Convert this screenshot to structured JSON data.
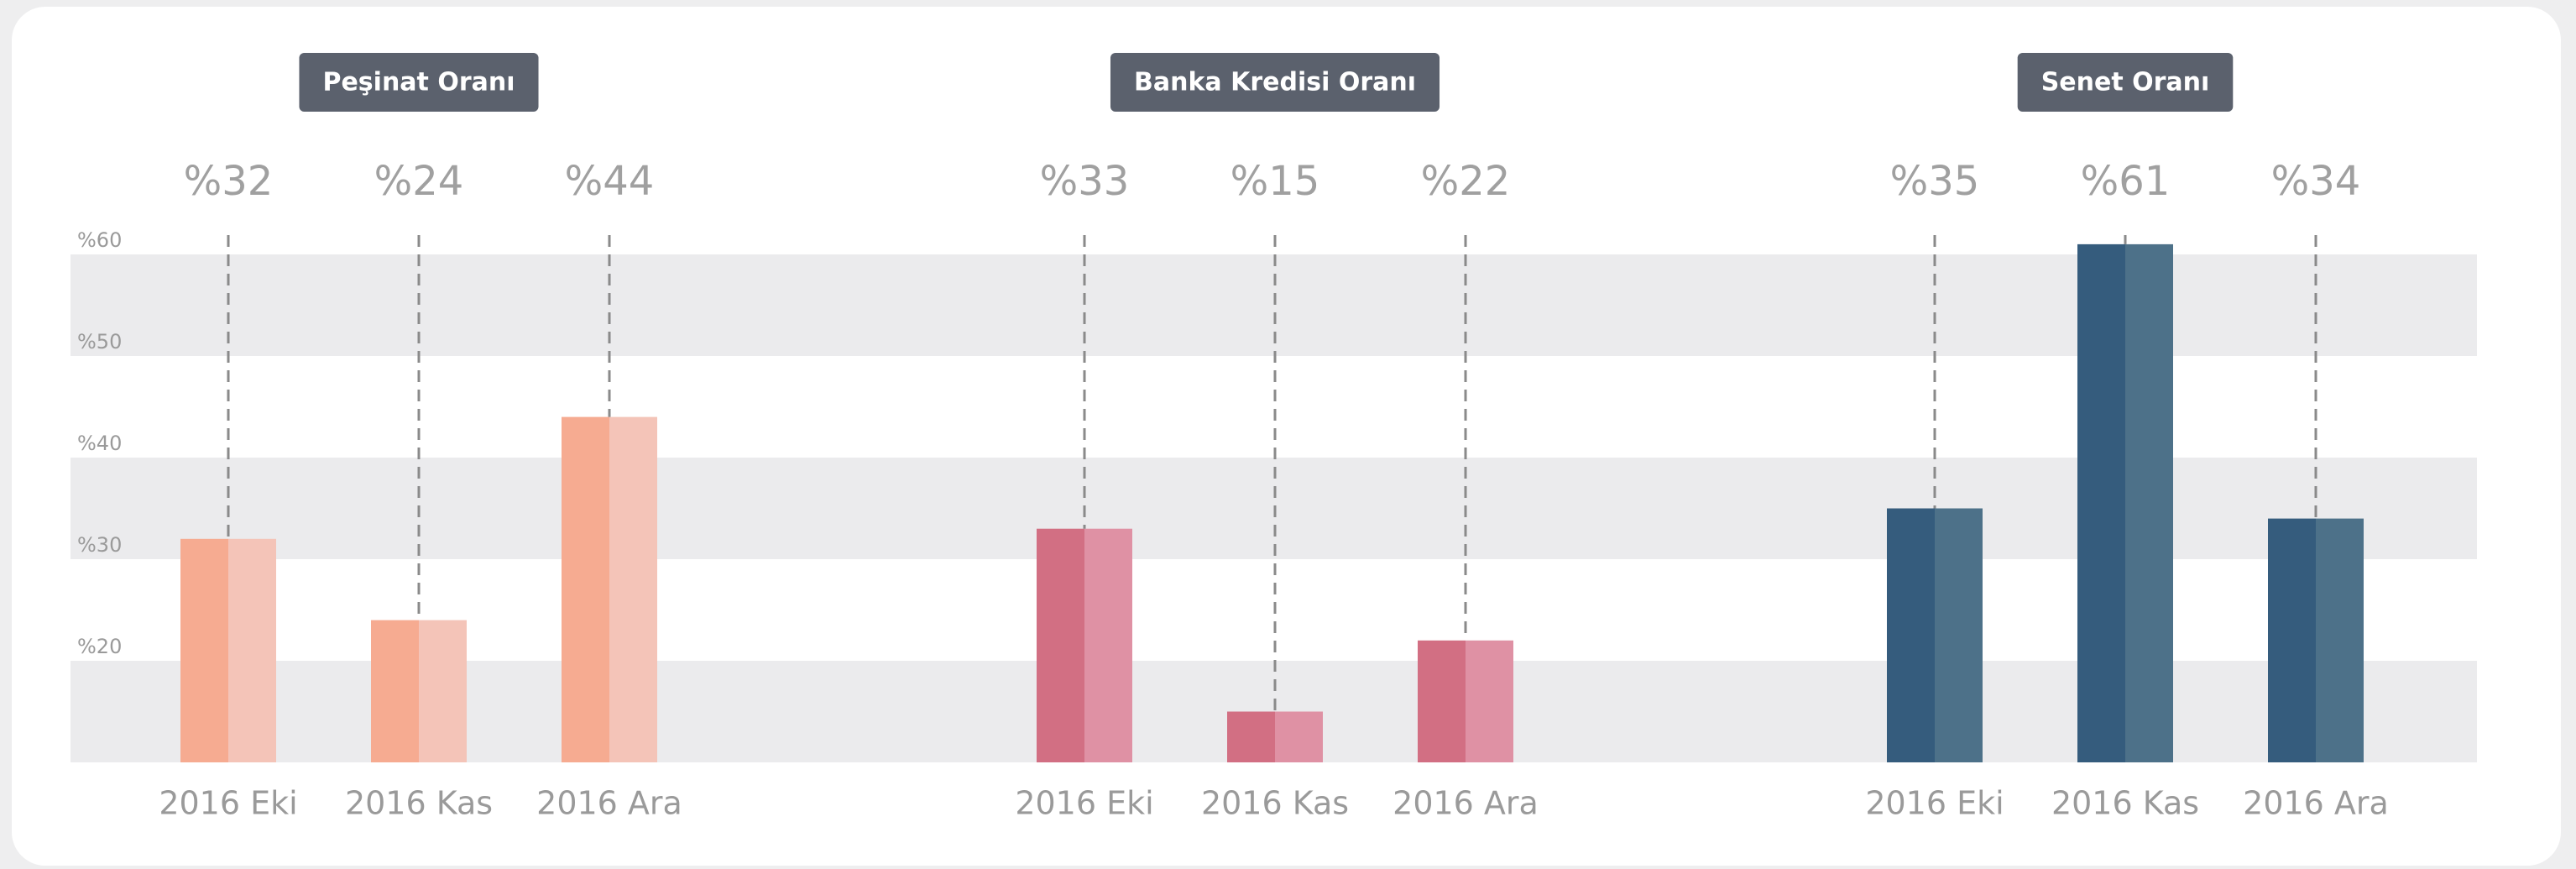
{
  "chart_data": [
    {
      "type": "bar",
      "title": "Peşinat Oranı",
      "categories": [
        "2016 Eki",
        "2016 Kas",
        "2016 Ara"
      ],
      "values": [
        32,
        24,
        44
      ],
      "value_labels": [
        "%32",
        "%24",
        "%44"
      ],
      "colors": [
        "#f6ab91",
        "#f4c4b8"
      ],
      "ylim": [
        10,
        60
      ],
      "yticks": [
        {
          "value": 20,
          "label": "%20"
        },
        {
          "value": 30,
          "label": "%30"
        },
        {
          "value": 40,
          "label": "%40"
        },
        {
          "value": 50,
          "label": "%50"
        },
        {
          "value": 60,
          "label": "%60"
        }
      ]
    },
    {
      "type": "bar",
      "title": "Banka Kredisi Oranı",
      "categories": [
        "2016 Eki",
        "2016 Kas",
        "2016 Ara"
      ],
      "values": [
        33,
        15,
        22
      ],
      "value_labels": [
        "%33",
        "%15",
        "%22"
      ],
      "colors": [
        "#d26f83",
        "#df91a4"
      ],
      "ylim": [
        10,
        60
      ]
    },
    {
      "type": "bar",
      "title": "Senet Oranı",
      "categories": [
        "2016 Eki",
        "2016 Kas",
        "2016 Ara"
      ],
      "values": [
        35,
        61,
        34
      ],
      "value_labels": [
        "%35",
        "%61",
        "%34"
      ],
      "colors": [
        "#355c7d",
        "#4d7189"
      ],
      "ylim": [
        10,
        60
      ]
    }
  ]
}
